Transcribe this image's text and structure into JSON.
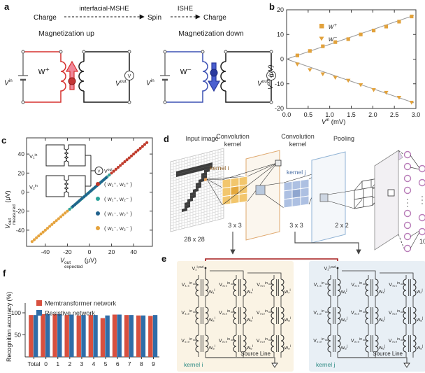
{
  "panel_a": {
    "label": "a",
    "flow": {
      "charge1": "Charge",
      "mshe": "interfacial-MSHE",
      "spin": "Spin",
      "ishe": "ISHE",
      "charge2": "Charge"
    },
    "up": {
      "title": "Magnetization up",
      "w": "w⁺"
    },
    "down": {
      "title": "Magnetization down",
      "w": "w⁻"
    },
    "vin_base": "V",
    "vin_sup": "in",
    "vout_base": "V",
    "vout_sup": "out",
    "meter": "V",
    "colors": {
      "up_loop": "#d6302e",
      "up_arrow_fill": "#f0889a",
      "up_arrow_stroke": "#d6302e",
      "up_ball": "#c43434",
      "down_loop": "#3c50b4",
      "down_arrow_fill": "#4a5fd0",
      "down_arrow_stroke": "#2b3a9e",
      "down_ball": "#2b3a9e"
    }
  },
  "panel_b": {
    "label": "b"
  },
  "panel_c": {
    "label": "c",
    "inset": {
      "v1": "V₁",
      "v2": "V₂",
      "in_sup": "in",
      "meter": "V",
      "vout_base": "V",
      "vout_sup": "out"
    }
  },
  "panel_d": {
    "label": "d",
    "input_label": "Input image",
    "input_size": "28 x 28",
    "conv1_line1": "Convolution",
    "conv1_line2": "kernel",
    "conv2_line1": "Convolution",
    "conv2_line2": "kernel",
    "kernel_i": "kernel i",
    "kernel_j": "kernel j",
    "size_3x3_a": "3 x 3",
    "size_3x3_b": "3 x 3",
    "pooling_label": "Pooling",
    "size_2x2": "2 x 2",
    "output_count": "10",
    "digit_color": "#3d3d3d",
    "highlight_color": "#e8a05a",
    "highlight_cell": [
      12,
      9
    ],
    "digit_cells": [
      [
        2,
        4
      ],
      [
        3,
        4
      ],
      [
        4,
        4
      ],
      [
        5,
        4
      ],
      [
        6,
        4
      ],
      [
        7,
        4
      ],
      [
        8,
        4
      ],
      [
        9,
        4
      ],
      [
        10,
        4
      ],
      [
        11,
        4
      ],
      [
        12,
        4
      ],
      [
        13,
        4
      ],
      [
        14,
        4
      ],
      [
        2,
        5
      ],
      [
        3,
        5
      ],
      [
        4,
        5
      ],
      [
        5,
        5
      ],
      [
        6,
        5
      ],
      [
        7,
        5
      ],
      [
        8,
        5
      ],
      [
        9,
        5
      ],
      [
        10,
        5
      ],
      [
        11,
        5
      ],
      [
        12,
        5
      ],
      [
        13,
        5
      ],
      [
        14,
        5
      ],
      [
        12,
        6
      ],
      [
        13,
        6
      ],
      [
        11,
        7
      ],
      [
        12,
        7
      ],
      [
        11,
        8
      ],
      [
        12,
        8
      ],
      [
        10,
        9
      ],
      [
        11,
        9
      ],
      [
        9,
        10
      ],
      [
        10,
        10
      ],
      [
        9,
        11
      ],
      [
        10,
        11
      ],
      [
        8,
        12
      ],
      [
        9,
        12
      ],
      [
        7,
        13
      ],
      [
        8,
        13
      ],
      [
        7,
        14
      ],
      [
        8,
        14
      ],
      [
        6,
        15
      ],
      [
        7,
        15
      ],
      [
        5,
        16
      ],
      [
        6,
        16
      ],
      [
        5,
        17
      ],
      [
        6,
        17
      ],
      [
        4,
        18
      ],
      [
        5,
        18
      ]
    ],
    "conv_orange": "#f2c66d",
    "conv_orange_dark": "#e5a93e",
    "conv_blue": "#adc0e2",
    "conv_blue_dark": "#8fa6cf",
    "node_color": "#b87cb8",
    "kernel_i_label_color": "#8a5a20",
    "kernel_j_label_color": "#4a6fa5"
  },
  "panel_e": {
    "label": "e",
    "label_color": "#2e8b84",
    "red_wire": "#a51c1c",
    "kernels": [
      {
        "name": "kernel i",
        "bg": "#faf3e4",
        "out_main": "V₁",
        "out_sup": "i,out",
        "input_sup": "in",
        "weight_sup": "i",
        "inputs": [
          "V₁,₁",
          "V₁,₂",
          "V₁,₃",
          "V₂,₁",
          "V₂,₂",
          "V₂,₃",
          "V₃,₁",
          "V₃,₂",
          "V₃,₃"
        ],
        "weights": [
          "w₁",
          "w₂",
          "w₃",
          "w₄",
          "w₅",
          "w₆",
          "w₇",
          "w₈",
          "w₉"
        ],
        "source_line": "Source Line"
      },
      {
        "name": "kernel j",
        "bg": "#e8eff5",
        "out_main": "V₁",
        "out_sup": "j,out",
        "input_sup": "in",
        "weight_sup": "j",
        "inputs": [
          "V₁,₁",
          "V₁,₂",
          "V₁,₃",
          "V₂,₁",
          "V₂,₂",
          "V₂,₃",
          "V₃,₁",
          "V₃,₂",
          "V₃,₃"
        ],
        "weights": [
          "w₁",
          "w₂",
          "w₃",
          "w₄",
          "w₅",
          "w₆",
          "w₇",
          "w₈",
          "w₉"
        ],
        "source_line": "Source Line"
      }
    ]
  },
  "panel_f": {
    "label": "f"
  },
  "chart_data": [
    {
      "id": "b",
      "type": "scatter",
      "xlabel_base": "V",
      "xlabel_sup": "in",
      "xlabel_unit": " (mV)",
      "ylabel_base": "V",
      "ylabel_sup": "out",
      "ylabel_unit": " (μV)",
      "xlim": [
        0,
        3.0
      ],
      "ylim": [
        -20,
        20
      ],
      "xticks": [
        0.0,
        0.5,
        1.0,
        1.5,
        2.0,
        2.5,
        3.0
      ],
      "xtick_labels": [
        "0.0",
        "0.5",
        "1.0",
        "1.5",
        "2.0",
        "2.5",
        "3.0"
      ],
      "yticks": [
        -20,
        -10,
        0,
        10,
        20
      ],
      "ytick_labels": [
        "-20",
        "-10",
        "0",
        "10",
        "20"
      ],
      "fit_line_color": "#999999",
      "series": [
        {
          "name": "w⁺",
          "marker": "square",
          "color": "#e2a23c",
          "fit_slope": 6.0,
          "x": [
            0.25,
            0.54,
            0.84,
            1.13,
            1.43,
            1.72,
            2.02,
            2.31,
            2.61,
            2.9
          ],
          "y": [
            1.5,
            3.3,
            5.2,
            6.9,
            8.1,
            10.0,
            11.6,
            13.2,
            15.2,
            17.3
          ]
        },
        {
          "name": "w⁻",
          "marker": "triangle-down",
          "color": "#e2a23c",
          "fit_slope": -6.0,
          "x": [
            0.25,
            0.54,
            0.84,
            1.13,
            1.43,
            1.72,
            2.02,
            2.31,
            2.61,
            2.9
          ],
          "y": [
            -2.0,
            -4.3,
            -6.0,
            -7.4,
            -8.6,
            -10.4,
            -12.4,
            -13.5,
            -15.5,
            -17.5
          ]
        }
      ]
    },
    {
      "id": "c",
      "type": "scatter",
      "xlabel_base": "V",
      "xlabel_sup": "out",
      "xlabel_sub": "expected",
      "xlabel_unit": " (μV)",
      "ylabel_base": "V",
      "ylabel_sup": "out",
      "ylabel_sub": "measured",
      "ylabel_unit": " (μV)",
      "xlim": [
        -57,
        57
      ],
      "ylim": [
        -57,
        57
      ],
      "xticks": [
        -40,
        -20,
        0,
        20,
        40
      ],
      "xtick_labels": [
        "-40",
        "-20",
        "0",
        "20",
        "40"
      ],
      "yticks": [
        -40,
        -20,
        0,
        20,
        40
      ],
      "ytick_labels": [
        "-40",
        "-20",
        "0",
        "20",
        "40"
      ],
      "series": [
        {
          "name": "( w₁⁺, w₂⁺ )",
          "color": "#bf3a2b",
          "values": [
            2,
            4,
            6,
            8,
            10,
            12,
            14,
            16,
            18,
            20,
            22,
            24,
            26,
            28,
            30,
            32,
            34,
            36,
            38,
            40,
            42,
            44,
            46,
            48,
            50,
            52
          ]
        },
        {
          "name": "( w₁⁺, w₂⁻ )",
          "color": "#2ba39b",
          "values": [
            -18,
            -16,
            -14,
            -12,
            -10,
            -8,
            -6,
            -4,
            -2,
            0,
            2,
            4,
            6,
            8,
            10,
            12,
            14,
            16,
            18
          ]
        },
        {
          "name": "( w₁⁻, w₂⁺ )",
          "color": "#20618d",
          "values": [
            -15,
            -13,
            -11,
            -9,
            -7,
            -5,
            -3,
            -1,
            1,
            3,
            5,
            7,
            9,
            11,
            13,
            15
          ]
        },
        {
          "name": "( w₁⁻, w₂⁻ )",
          "color": "#e5a33d",
          "values": [
            -52,
            -50,
            -48,
            -46,
            -44,
            -42,
            -40,
            -38,
            -36,
            -34,
            -32,
            -30,
            -28,
            -26,
            -24,
            -22,
            -20,
            -18,
            -16,
            -14,
            -12,
            -10,
            -8,
            -6,
            -4,
            -2
          ]
        }
      ]
    },
    {
      "id": "f",
      "type": "bar",
      "ylabel": "Recognition accuracy (%)",
      "categories": [
        "Total",
        "0",
        "1",
        "2",
        "3",
        "4",
        "5",
        "6",
        "7",
        "8",
        "9"
      ],
      "yticks": [
        50,
        100
      ],
      "ytick_labels": [
        "50",
        "100"
      ],
      "ylim": [
        0,
        132
      ],
      "series": [
        {
          "name": "Memtransformer network",
          "color": "#d8503f",
          "values": [
            95,
            97,
            97,
            95,
            94,
            95,
            88,
            96,
            95,
            94,
            93
          ]
        },
        {
          "name": "Resistive network",
          "color": "#2f6da8",
          "values": [
            95,
            97,
            97,
            96,
            95,
            95,
            94,
            96,
            95,
            94,
            95
          ]
        }
      ]
    }
  ]
}
